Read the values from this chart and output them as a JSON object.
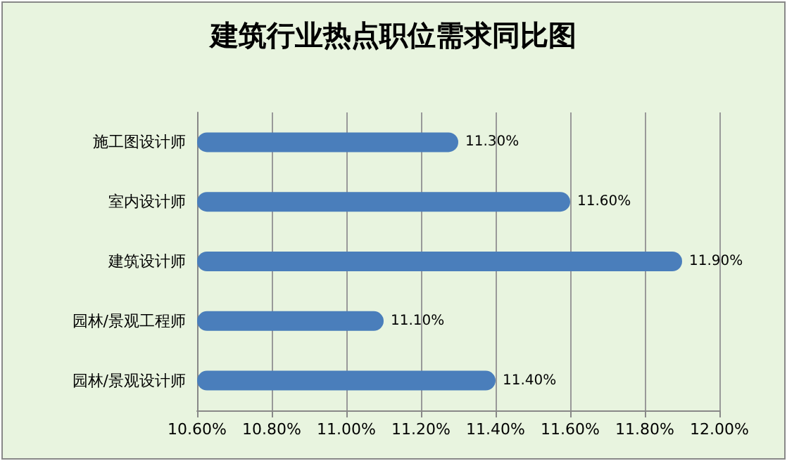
{
  "chart_data": {
    "type": "bar",
    "orientation": "horizontal",
    "title": "建筑行业热点职位需求同比图",
    "categories": [
      "施工图设计师",
      "室内设计师",
      "建筑设计师",
      "园林/景观工程师",
      "园林/景观设计师"
    ],
    "values": [
      11.3,
      11.6,
      11.9,
      11.1,
      11.4
    ],
    "color": "#4a7ebb",
    "value_labels": [
      "11.30%",
      "11.60%",
      "11.90%",
      "11.10%",
      "11.40%"
    ],
    "xlim": [
      10.6,
      12.0
    ],
    "xticks": [
      {
        "value": 10.6,
        "label": "10.60%"
      },
      {
        "value": 10.8,
        "label": "10.80%"
      },
      {
        "value": 11.0,
        "label": "11.00%"
      },
      {
        "value": 11.2,
        "label": "11.20%"
      },
      {
        "value": 11.4,
        "label": "11.40%"
      },
      {
        "value": 11.6,
        "label": "11.60%"
      },
      {
        "value": 11.8,
        "label": "11.80%"
      },
      {
        "value": 12.0,
        "label": "12.00%"
      }
    ],
    "grid": "x"
  }
}
